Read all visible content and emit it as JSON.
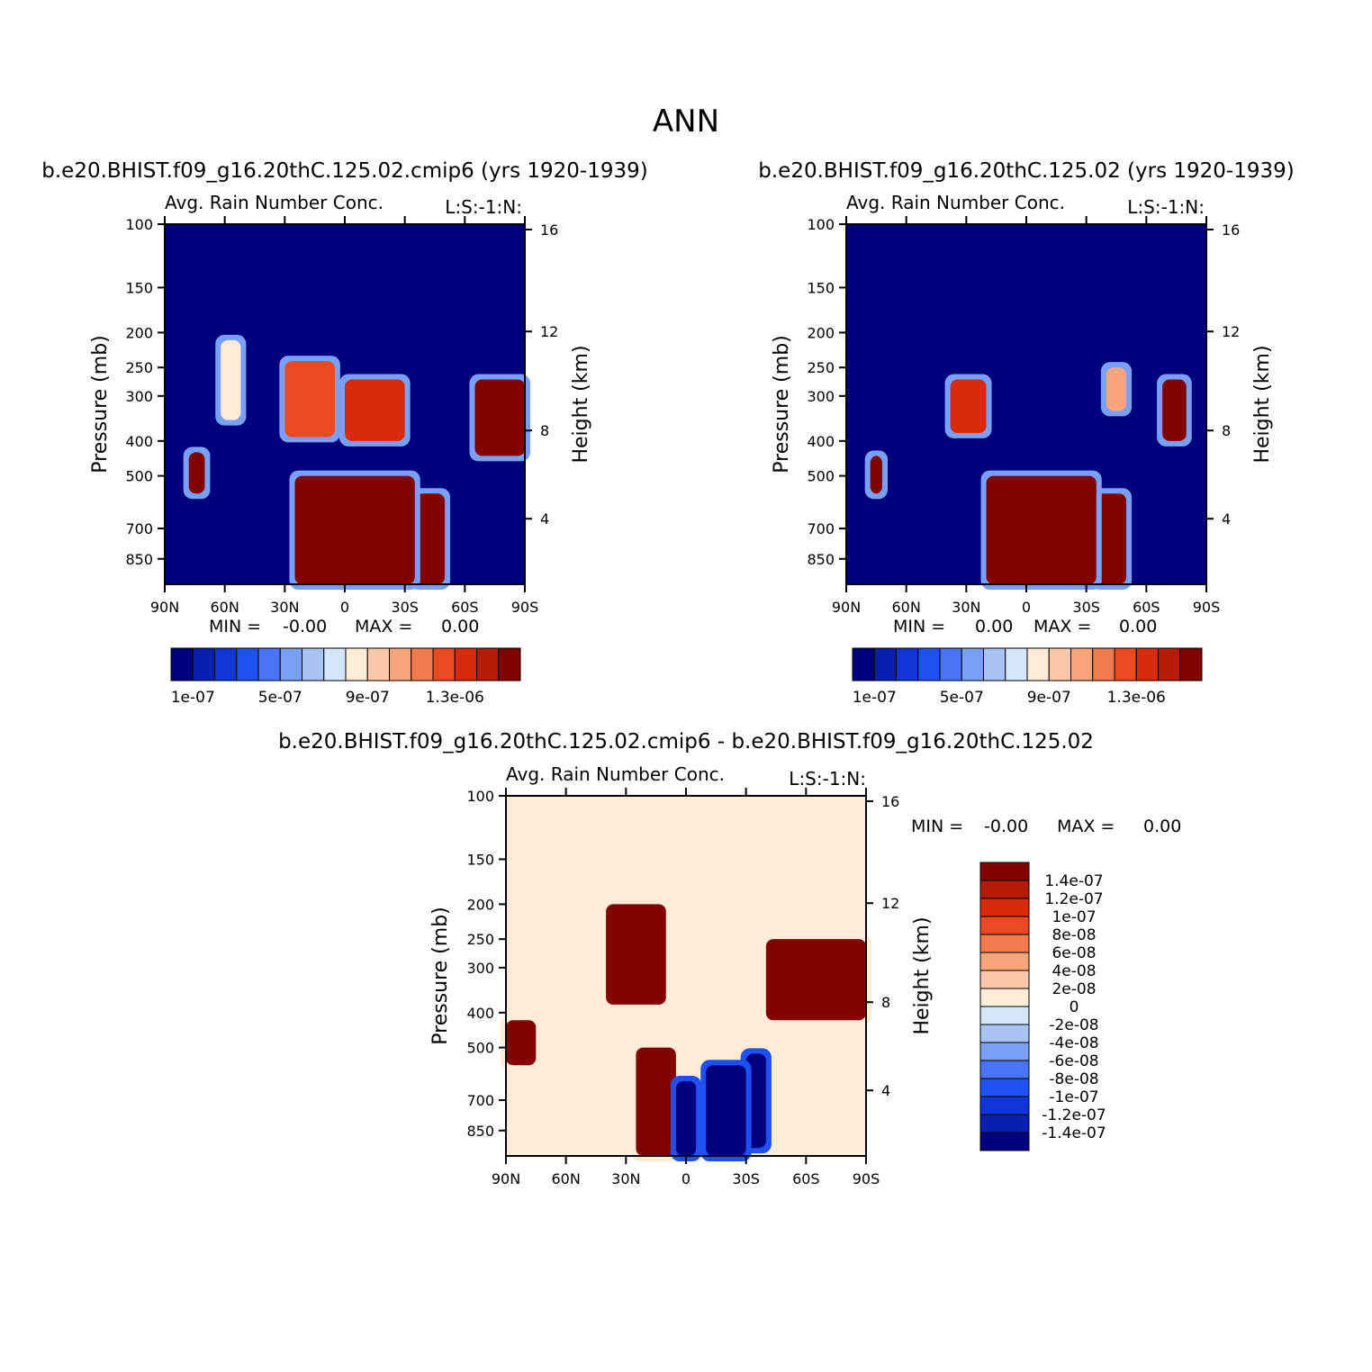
{
  "page_title": "ANN",
  "colors": {
    "seq": [
      "#00007e",
      "#0a1fb0",
      "#1136d6",
      "#1e50f2",
      "#4a73f6",
      "#7aa0f6",
      "#a9c4f2",
      "#d5e6fa",
      "#feebd8",
      "#fcc9a8",
      "#f8a47c",
      "#f27a4f",
      "#ea4a22",
      "#d92a0e",
      "#b51c07",
      "#830303"
    ],
    "diff": [
      "#00007e",
      "#0a1fb0",
      "#1136d6",
      "#1e50f2",
      "#4a73f6",
      "#7aa0f6",
      "#a9c4f2",
      "#d5e6fa",
      "#feebd8",
      "#fcc9a8",
      "#f8a47c",
      "#f27a4f",
      "#ea4a22",
      "#d92a0e",
      "#b51c07",
      "#830303"
    ]
  },
  "chart_data": [
    {
      "type": "heatmap",
      "case_title": "b.e20.BHIST.f09_g16.20thC.125.02.cmip6 (yrs 1920-1939)",
      "title": "Avg. Rain Number Conc.",
      "units": "L:S:-1:N:",
      "ylabel": "Pressure (mb)",
      "y2label": "Height (km)",
      "yticks": [
        "100",
        "150",
        "200",
        "250",
        "300",
        "400",
        "500",
        "700",
        "850"
      ],
      "y2ticks": [
        "16",
        "12",
        "8",
        "4"
      ],
      "xticks": [
        "90N",
        "60N",
        "30N",
        "0",
        "30S",
        "60S",
        "90S"
      ],
      "ylim": [
        100,
        1000
      ],
      "min_label": "MIN =",
      "min_value": "-0.00",
      "max_label": "MAX =",
      "max_value": "0.00",
      "colorbar_labels": [
        "1e-07",
        "5e-07",
        "9e-07",
        "1.3e-06"
      ],
      "levels": [
        1e-07,
        2e-07,
        3e-07,
        4e-07,
        5e-07,
        6e-07,
        7e-07,
        8e-07,
        9e-07,
        1e-06,
        1.1e-06,
        1.2e-06,
        1.3e-06,
        1.4e-06,
        1.5e-06
      ],
      "regions": [
        {
          "lat": [
            -90,
            -65
          ],
          "p": [
            270,
            440
          ],
          "level": 15
        },
        {
          "lat": [
            -30,
            0
          ],
          "p": [
            270,
            400
          ],
          "level": 13
        },
        {
          "lat": [
            5,
            30
          ],
          "p": [
            240,
            390
          ],
          "level": 12
        },
        {
          "lat": [
            52,
            62
          ],
          "p": [
            210,
            350
          ],
          "level": 8
        },
        {
          "lat": [
            70,
            78
          ],
          "p": [
            430,
            560
          ],
          "level": 15
        },
        {
          "lat": [
            -50,
            -35
          ],
          "p": [
            560,
            1000
          ],
          "level": 15
        },
        {
          "lat": [
            -35,
            25
          ],
          "p": [
            500,
            1000
          ],
          "level": 15
        }
      ]
    },
    {
      "type": "heatmap",
      "case_title": "b.e20.BHIST.f09_g16.20thC.125.02 (yrs 1920-1939)",
      "title": "Avg. Rain Number Conc.",
      "units": "L:S:-1:N:",
      "ylabel": "Pressure (mb)",
      "y2label": "Height (km)",
      "yticks": [
        "100",
        "150",
        "200",
        "250",
        "300",
        "400",
        "500",
        "700",
        "850"
      ],
      "y2ticks": [
        "16",
        "12",
        "8",
        "4"
      ],
      "xticks": [
        "90N",
        "60N",
        "30N",
        "0",
        "30S",
        "60S",
        "90S"
      ],
      "ylim": [
        100,
        1000
      ],
      "min_label": "MIN =",
      "min_value": "0.00",
      "max_label": "MAX =",
      "max_value": "0.00",
      "colorbar_labels": [
        "1e-07",
        "5e-07",
        "9e-07",
        "1.3e-06"
      ],
      "levels": [
        1e-07,
        2e-07,
        3e-07,
        4e-07,
        5e-07,
        6e-07,
        7e-07,
        8e-07,
        9e-07,
        1e-06,
        1.1e-06,
        1.2e-06,
        1.3e-06,
        1.4e-06,
        1.5e-06
      ],
      "regions": [
        {
          "lat": [
            -80,
            -68
          ],
          "p": [
            270,
            400
          ],
          "level": 15
        },
        {
          "lat": [
            -50,
            -40
          ],
          "p": [
            250,
            330
          ],
          "level": 10
        },
        {
          "lat": [
            20,
            38
          ],
          "p": [
            270,
            380
          ],
          "level": 13
        },
        {
          "lat": [
            72,
            78
          ],
          "p": [
            440,
            560
          ],
          "level": 15
        },
        {
          "lat": [
            -50,
            -35
          ],
          "p": [
            560,
            1000
          ],
          "level": 15
        },
        {
          "lat": [
            -35,
            20
          ],
          "p": [
            500,
            1000
          ],
          "level": 15
        }
      ]
    },
    {
      "type": "heatmap",
      "case_title": "b.e20.BHIST.f09_g16.20thC.125.02.cmip6 - b.e20.BHIST.f09_g16.20thC.125.02",
      "title": "Avg. Rain Number Conc.",
      "units": "L:S:-1:N:",
      "ylabel": "Pressure (mb)",
      "y2label": "Height (km)",
      "yticks": [
        "100",
        "150",
        "200",
        "250",
        "300",
        "400",
        "500",
        "700",
        "850"
      ],
      "y2ticks": [
        "16",
        "12",
        "8",
        "4"
      ],
      "xticks": [
        "90N",
        "60N",
        "30N",
        "0",
        "30S",
        "60S",
        "90S"
      ],
      "ylim": [
        100,
        1000
      ],
      "min_label": "MIN =",
      "min_value": "-0.00",
      "max_label": "MAX =",
      "max_value": "0.00",
      "colorbar_labels": [
        "1.4e-07",
        "1.2e-07",
        "1e-07",
        "8e-08",
        "6e-08",
        "4e-08",
        "2e-08",
        "0",
        "-2e-08",
        "-4e-08",
        "-6e-08",
        "-8e-08",
        "-1e-07",
        "-1.2e-07",
        "-1.4e-07"
      ],
      "levels": [
        -1.4e-07,
        -1.2e-07,
        -1e-07,
        -8e-08,
        -6e-08,
        -4e-08,
        -2e-08,
        0,
        2e-08,
        4e-08,
        6e-08,
        8e-08,
        1e-07,
        1.2e-07,
        1.4e-07
      ],
      "regions": [
        {
          "lat": [
            -90,
            -40
          ],
          "p": [
            250,
            420
          ],
          "level": 15
        },
        {
          "lat": [
            10,
            40
          ],
          "p": [
            200,
            380
          ],
          "level": 15
        },
        {
          "lat": [
            -40,
            -30
          ],
          "p": [
            520,
            950
          ],
          "level": 0
        },
        {
          "lat": [
            -30,
            -10
          ],
          "p": [
            560,
            1000
          ],
          "level": 0
        },
        {
          "lat": [
            5,
            25
          ],
          "p": [
            500,
            1000
          ],
          "level": 15
        },
        {
          "lat": [
            -5,
            5
          ],
          "p": [
            620,
            1000
          ],
          "level": 0
        },
        {
          "lat": [
            75,
            90
          ],
          "p": [
            420,
            560
          ],
          "level": 15
        }
      ]
    }
  ]
}
